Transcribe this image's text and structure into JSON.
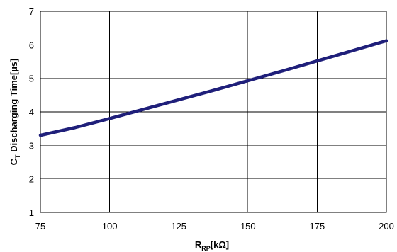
{
  "chart_data": {
    "type": "line",
    "title": "",
    "xlabel": {
      "main": "R",
      "sub": "RP",
      "unit": "[kΩ]"
    },
    "ylabel": {
      "main": "C",
      "sub": "T",
      "rest": " Discharging Time[µs]"
    },
    "xlim": [
      75,
      200
    ],
    "ylim": [
      1,
      7
    ],
    "x_ticks": [
      75,
      100,
      125,
      150,
      175,
      200
    ],
    "y_ticks": [
      1,
      2,
      3,
      4,
      5,
      6,
      7
    ],
    "grid": true,
    "series": [
      {
        "color": "#1f1f7a",
        "x": [
          75,
          87.5,
          100,
          112.5,
          125,
          137.5,
          150,
          162.5,
          175,
          187.5,
          200
        ],
        "y": [
          3.3,
          3.53,
          3.8,
          4.08,
          4.36,
          4.64,
          4.93,
          5.22,
          5.52,
          5.82,
          6.12
        ]
      }
    ]
  }
}
